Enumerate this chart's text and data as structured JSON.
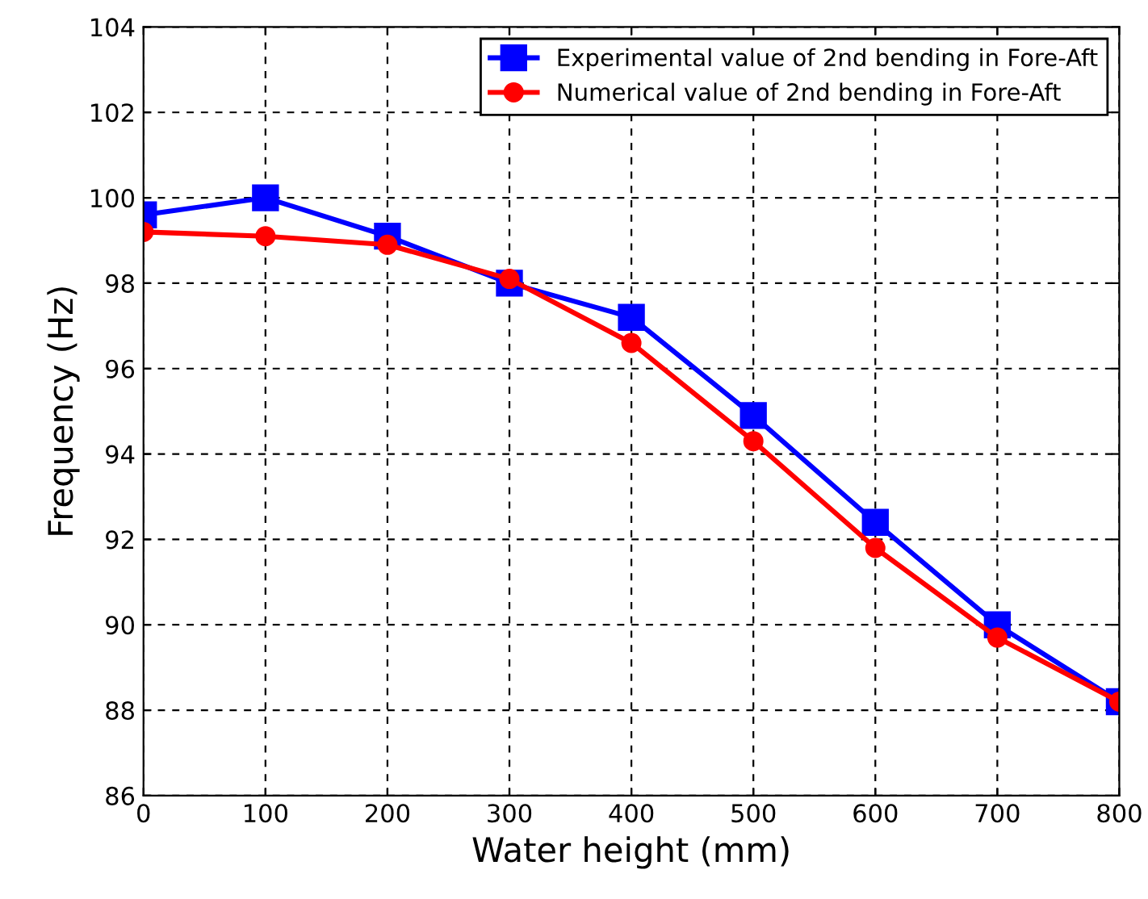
{
  "chart_data": {
    "type": "line",
    "xlabel": "Water height (mm)",
    "ylabel": "Frequency (Hz)",
    "x": [
      0,
      100,
      200,
      300,
      400,
      500,
      600,
      700,
      800
    ],
    "series": [
      {
        "name": "Experimental value of 2nd bending in Fore-Aft",
        "color": "#0000ff",
        "marker": "square",
        "values": [
          99.6,
          100.0,
          99.1,
          98.0,
          97.2,
          94.9,
          92.4,
          90.0,
          88.2
        ]
      },
      {
        "name": "Numerical value of 2nd bending in Fore-Aft",
        "color": "#ff0000",
        "marker": "circle",
        "values": [
          99.2,
          99.1,
          98.9,
          98.1,
          96.6,
          94.3,
          91.8,
          89.7,
          88.2
        ]
      }
    ],
    "xlim": [
      0,
      800
    ],
    "xticks": [
      0,
      100,
      200,
      300,
      400,
      500,
      600,
      700,
      800
    ],
    "ylim": [
      86,
      104
    ],
    "yticks": [
      86,
      88,
      90,
      92,
      94,
      96,
      98,
      100,
      102,
      104
    ],
    "grid": true,
    "legend": "top right",
    "line_style": "solid"
  }
}
